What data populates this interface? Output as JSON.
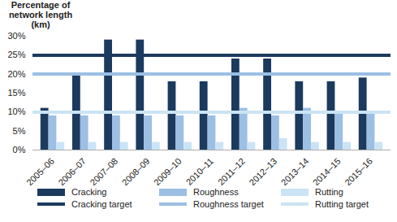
{
  "chart_data": {
    "type": "bar",
    "y_label": "Percentage of network length (km)",
    "categories": [
      "2005–06",
      "2006–07",
      "2007–08",
      "2008–09",
      "2009–10",
      "2010–11",
      "2011–12",
      "2012–13",
      "2013–14",
      "2014–15",
      "2015–16"
    ],
    "series": [
      {
        "name": "Cracking",
        "type": "bar",
        "color": "#1c3a5e",
        "values": [
          11,
          20,
          29,
          29,
          18,
          18,
          24,
          24,
          18,
          18,
          19
        ]
      },
      {
        "name": "Roughness",
        "type": "bar",
        "color": "#9cbfe3",
        "values": [
          9,
          9,
          9,
          9,
          9,
          9,
          11,
          9,
          11,
          10,
          10
        ]
      },
      {
        "name": "Rutting",
        "type": "bar",
        "color": "#cbe4f5",
        "values": [
          2,
          2,
          2,
          2,
          2,
          2,
          2,
          3,
          2,
          2,
          2
        ]
      },
      {
        "name": "Cracking target",
        "type": "line",
        "color": "#1c3a5e",
        "values": [
          25,
          25,
          25,
          25,
          25,
          25,
          25,
          25,
          25,
          25,
          25
        ]
      },
      {
        "name": "Roughness target",
        "type": "line",
        "color": "#9cbfe3",
        "values": [
          20,
          20,
          20,
          20,
          20,
          20,
          20,
          20,
          20,
          20,
          20
        ]
      },
      {
        "name": "Rutting target",
        "type": "line",
        "color": "#cbe4f5",
        "values": [
          10,
          10,
          10,
          10,
          10,
          10,
          10,
          10,
          10,
          10,
          10
        ]
      }
    ],
    "ylim": [
      0,
      30
    ],
    "yticks": [
      {
        "value": 0,
        "label": "0%"
      },
      {
        "value": 5,
        "label": "5%"
      },
      {
        "value": 10,
        "label": "10%"
      },
      {
        "value": 15,
        "label": "15%"
      },
      {
        "value": 20,
        "label": "20%"
      },
      {
        "value": 25,
        "label": "25%"
      },
      {
        "value": 30,
        "label": "30%"
      }
    ],
    "grid": false,
    "legend": "bottom"
  }
}
